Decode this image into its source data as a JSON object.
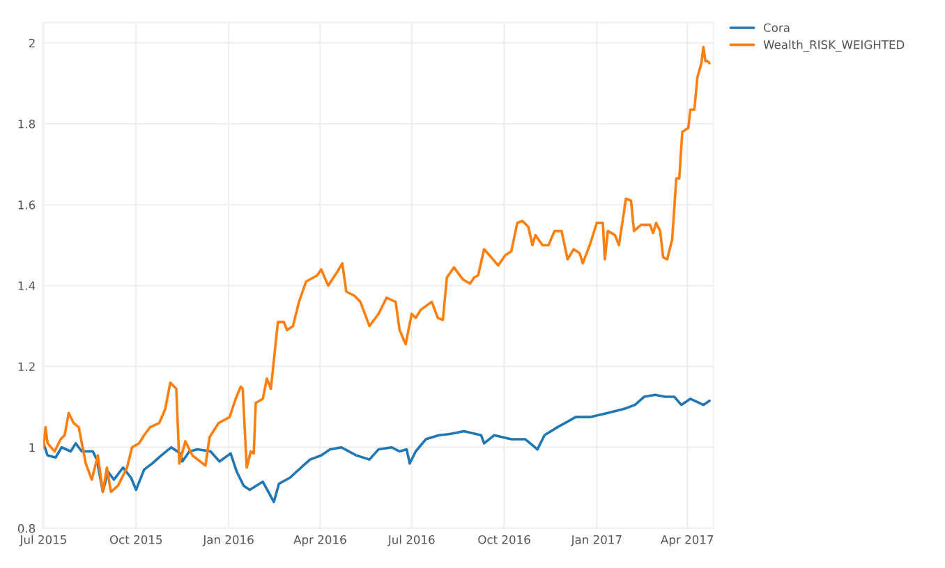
{
  "chart_data": {
    "type": "line",
    "legend": "top right",
    "grid": true,
    "xlim": [
      "2015-06-30",
      "2017-04-27"
    ],
    "ylim": [
      0.8,
      2.05
    ],
    "xticks": [
      {
        "value": "2015-07-01",
        "label": "Jul 2015"
      },
      {
        "value": "2015-10-01",
        "label": "Oct 2015"
      },
      {
        "value": "2016-01-01",
        "label": "Jan 2016"
      },
      {
        "value": "2016-04-01",
        "label": "Apr 2016"
      },
      {
        "value": "2016-07-01",
        "label": "Jul 2016"
      },
      {
        "value": "2016-10-01",
        "label": "Oct 2016"
      },
      {
        "value": "2017-01-01",
        "label": "Jan 2017"
      },
      {
        "value": "2017-04-01",
        "label": "Apr 2017"
      }
    ],
    "yticks": [
      0.8,
      1,
      1.2,
      1.4,
      1.6,
      1.8,
      2
    ],
    "series": [
      {
        "name": "Cora",
        "color": "#1f77b4",
        "x": [
          "2015-07-01",
          "2015-07-05",
          "2015-07-13",
          "2015-07-19",
          "2015-07-28",
          "2015-08-02",
          "2015-08-08",
          "2015-08-19",
          "2015-08-23",
          "2015-08-29",
          "2015-09-03",
          "2015-09-09",
          "2015-09-18",
          "2015-09-26",
          "2015-10-01",
          "2015-10-09",
          "2015-10-17",
          "2015-10-26",
          "2015-11-05",
          "2015-11-14",
          "2015-11-16",
          "2015-11-23",
          "2015-12-01",
          "2015-12-14",
          "2015-12-23",
          "2016-01-03",
          "2016-01-09",
          "2016-01-16",
          "2016-01-22",
          "2016-02-04",
          "2016-02-15",
          "2016-02-20",
          "2016-03-02",
          "2016-03-13",
          "2016-03-22",
          "2016-04-02",
          "2016-04-11",
          "2016-04-22",
          "2016-05-07",
          "2016-05-20",
          "2016-05-29",
          "2016-06-11",
          "2016-06-19",
          "2016-06-26",
          "2016-06-29",
          "2016-07-05",
          "2016-07-15",
          "2016-07-28",
          "2016-08-08",
          "2016-08-22",
          "2016-09-08",
          "2016-09-11",
          "2016-09-21",
          "2016-10-08",
          "2016-10-22",
          "2016-11-03",
          "2016-11-10",
          "2016-11-23",
          "2016-12-04",
          "2016-12-11",
          "2016-12-26",
          "2017-01-12",
          "2017-01-28",
          "2017-02-08",
          "2017-02-17",
          "2017-02-28",
          "2017-03-10",
          "2017-03-19",
          "2017-03-26",
          "2017-04-04",
          "2017-04-17",
          "2017-04-23"
        ],
        "values": [
          1.01,
          0.98,
          0.975,
          1.0,
          0.99,
          1.01,
          0.99,
          0.99,
          0.97,
          0.89,
          0.94,
          0.92,
          0.95,
          0.925,
          0.895,
          0.945,
          0.96,
          0.98,
          1.0,
          0.985,
          0.965,
          0.99,
          0.995,
          0.99,
          0.965,
          0.985,
          0.94,
          0.905,
          0.895,
          0.915,
          0.865,
          0.91,
          0.925,
          0.95,
          0.97,
          0.98,
          0.995,
          1.0,
          0.98,
          0.97,
          0.995,
          1.0,
          0.99,
          0.995,
          0.96,
          0.99,
          1.02,
          1.03,
          1.033,
          1.04,
          1.03,
          1.01,
          1.03,
          1.02,
          1.02,
          0.995,
          1.03,
          1.05,
          1.065,
          1.075,
          1.075,
          1.085,
          1.095,
          1.105,
          1.125,
          1.13,
          1.125,
          1.125,
          1.105,
          1.12,
          1.105,
          1.115
        ]
      },
      {
        "name": "Wealth_RISK_WEIGHTED",
        "color": "#ff7f0e",
        "x": [
          "2015-07-01",
          "2015-07-03",
          "2015-07-05",
          "2015-07-12",
          "2015-07-18",
          "2015-07-22",
          "2015-07-26",
          "2015-07-31",
          "2015-08-05",
          "2015-08-12",
          "2015-08-18",
          "2015-08-24",
          "2015-08-29",
          "2015-09-02",
          "2015-09-06",
          "2015-09-13",
          "2015-09-22",
          "2015-09-27",
          "2015-10-04",
          "2015-10-09",
          "2015-10-15",
          "2015-10-24",
          "2015-10-30",
          "2015-11-04",
          "2015-11-10",
          "2015-11-13",
          "2015-11-19",
          "2015-11-26",
          "2015-12-09",
          "2015-12-13",
          "2015-12-22",
          "2016-01-02",
          "2016-01-08",
          "2016-01-13",
          "2016-01-15",
          "2016-01-19",
          "2016-01-23",
          "2016-01-26",
          "2016-01-28",
          "2016-02-04",
          "2016-02-08",
          "2016-02-12",
          "2016-02-19",
          "2016-02-25",
          "2016-02-28",
          "2016-03-05",
          "2016-03-11",
          "2016-03-18",
          "2016-03-29",
          "2016-04-02",
          "2016-04-09",
          "2016-04-17",
          "2016-04-23",
          "2016-04-27",
          "2016-05-05",
          "2016-05-11",
          "2016-05-20",
          "2016-05-29",
          "2016-06-06",
          "2016-06-15",
          "2016-06-19",
          "2016-06-25",
          "2016-07-01",
          "2016-07-05",
          "2016-07-10",
          "2016-07-21",
          "2016-07-27",
          "2016-08-01",
          "2016-08-05",
          "2016-08-12",
          "2016-08-21",
          "2016-08-28",
          "2016-09-01",
          "2016-09-05",
          "2016-09-11",
          "2016-09-18",
          "2016-09-25",
          "2016-10-02",
          "2016-10-08",
          "2016-10-14",
          "2016-10-19",
          "2016-10-25",
          "2016-10-29",
          "2016-11-01",
          "2016-11-08",
          "2016-11-14",
          "2016-11-20",
          "2016-11-27",
          "2016-12-03",
          "2016-12-09",
          "2016-12-15",
          "2016-12-18",
          "2016-12-25",
          "2017-01-01",
          "2017-01-07",
          "2017-01-09",
          "2017-01-12",
          "2017-01-19",
          "2017-01-23",
          "2017-01-30",
          "2017-02-04",
          "2017-02-07",
          "2017-02-14",
          "2017-02-23",
          "2017-02-26",
          "2017-03-01",
          "2017-03-05",
          "2017-03-08",
          "2017-03-12",
          "2017-03-17",
          "2017-03-21",
          "2017-03-24",
          "2017-03-27",
          "2017-04-02",
          "2017-04-04",
          "2017-04-08",
          "2017-04-11",
          "2017-04-15",
          "2017-04-17",
          "2017-04-19",
          "2017-04-21",
          "2017-04-23"
        ],
        "values": [
          1.0,
          1.05,
          1.01,
          0.99,
          1.02,
          1.03,
          1.085,
          1.06,
          1.05,
          0.96,
          0.92,
          0.98,
          0.89,
          0.95,
          0.89,
          0.905,
          0.95,
          1.0,
          1.01,
          1.03,
          1.05,
          1.06,
          1.095,
          1.16,
          1.145,
          0.96,
          1.015,
          0.98,
          0.955,
          1.025,
          1.06,
          1.075,
          1.12,
          1.15,
          1.145,
          0.95,
          0.99,
          0.985,
          1.11,
          1.12,
          1.17,
          1.145,
          1.31,
          1.31,
          1.29,
          1.3,
          1.36,
          1.41,
          1.425,
          1.44,
          1.4,
          1.43,
          1.455,
          1.385,
          1.375,
          1.36,
          1.3,
          1.33,
          1.37,
          1.36,
          1.29,
          1.255,
          1.33,
          1.32,
          1.34,
          1.36,
          1.32,
          1.315,
          1.42,
          1.445,
          1.415,
          1.405,
          1.42,
          1.425,
          1.49,
          1.47,
          1.45,
          1.475,
          1.485,
          1.555,
          1.56,
          1.545,
          1.5,
          1.525,
          1.5,
          1.5,
          1.535,
          1.535,
          1.465,
          1.49,
          1.48,
          1.455,
          1.5,
          1.555,
          1.555,
          1.465,
          1.535,
          1.525,
          1.5,
          1.615,
          1.61,
          1.535,
          1.55,
          1.55,
          1.53,
          1.555,
          1.535,
          1.47,
          1.465,
          1.515,
          1.665,
          1.665,
          1.78,
          1.79,
          1.835,
          1.835,
          1.915,
          1.95,
          1.99,
          1.955,
          1.955,
          1.95
        ]
      }
    ]
  }
}
